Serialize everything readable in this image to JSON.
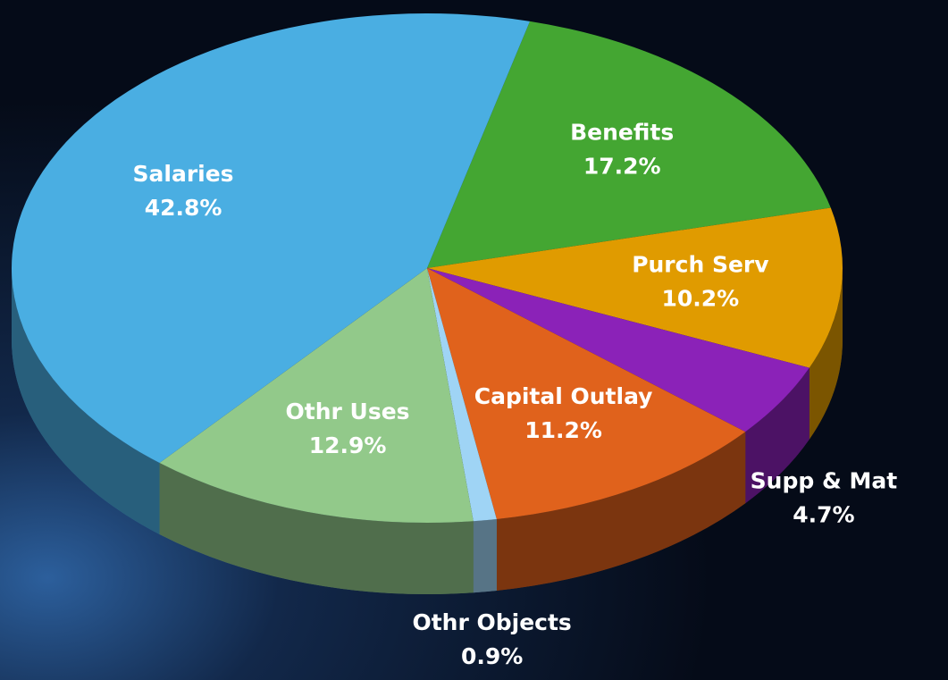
{
  "chart_data": {
    "type": "pie",
    "categories": [
      "Benefits",
      "Purch Serv",
      "Supp & Mat",
      "Capital Outlay",
      "Othr Objects",
      "Othr Uses",
      "Salaries"
    ],
    "values": [
      17.2,
      10.2,
      4.7,
      11.2,
      0.9,
      12.9,
      42.8
    ],
    "value_labels": [
      "17.2%",
      "10.2%",
      "4.7%",
      "11.2%",
      "0.9%",
      "12.9%",
      "42.8%"
    ],
    "colors": [
      "#44a632",
      "#e09b00",
      "#8b22b8",
      "#e0621c",
      "#9fd4f5",
      "#92c98a",
      "#4aaee2"
    ]
  }
}
